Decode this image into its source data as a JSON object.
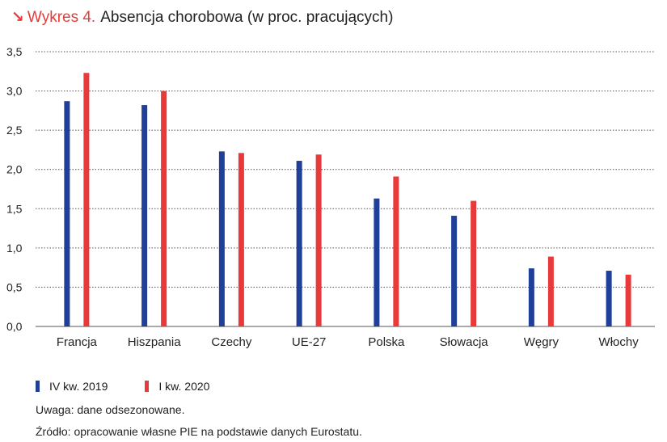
{
  "header": {
    "arrow": "↘",
    "label": "Wykres 4.",
    "title": "Absencja chorobowa (w proc. pracujących)"
  },
  "chart_data": {
    "type": "bar",
    "title": "Absencja chorobowa (w proc. pracujących)",
    "xlabel": "",
    "ylabel": "",
    "ylim": [
      0,
      3.5
    ],
    "yticks": [
      0,
      0.5,
      1,
      1.5,
      2,
      2.5,
      3,
      3.5
    ],
    "ytick_labels": [
      "0,0",
      "0,5",
      "1,0",
      "1,5",
      "2,0",
      "2,5",
      "3,0",
      "3,5"
    ],
    "grid": true,
    "categories": [
      "Francja",
      "Hiszpania",
      "Czechy",
      "UE-27",
      "Polska",
      "Słowacja",
      "Węgry",
      "Włochy"
    ],
    "series": [
      {
        "name": "IV kw. 2019",
        "color": "#1f3f99",
        "values": [
          2.87,
          2.82,
          2.23,
          2.11,
          1.63,
          1.41,
          0.74,
          0.71
        ]
      },
      {
        "name": "I kw. 2020",
        "color": "#e83a3a",
        "values": [
          3.23,
          3.0,
          2.21,
          2.19,
          1.91,
          1.6,
          0.89,
          0.66
        ]
      }
    ]
  },
  "notes": {
    "uwaga": "Uwaga: dane odsezonowane.",
    "zrodlo": "Źródło: opracowanie własne PIE na podstawie danych Eurostatu."
  }
}
